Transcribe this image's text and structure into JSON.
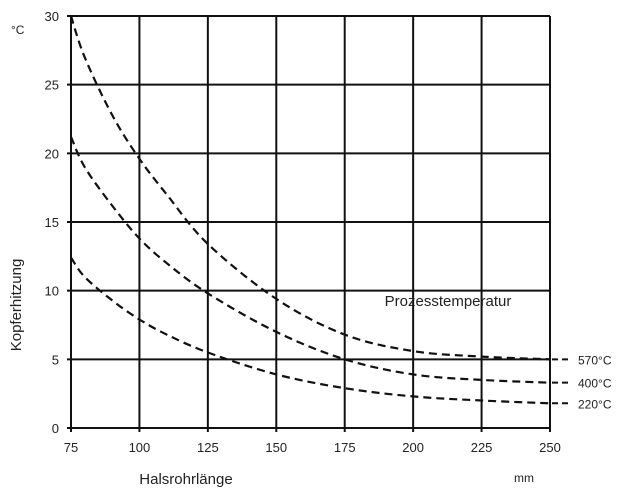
{
  "chart_data": {
    "type": "line",
    "xlabel": "Halsrohrlänge",
    "x_unit": "mm",
    "ylabel": "Kopferhitzung",
    "y_unit": "°C",
    "annotation": "Prozesstemperatur",
    "xlim": [
      75,
      250
    ],
    "ylim": [
      0,
      30
    ],
    "xticks": [
      75,
      100,
      125,
      150,
      175,
      200,
      225,
      250
    ],
    "yticks": [
      0,
      5,
      10,
      15,
      20,
      25,
      30
    ],
    "grid": true,
    "line_style": "dashed",
    "line_color": "#111111",
    "x": [
      75,
      80,
      90,
      100,
      110,
      125,
      150,
      175,
      200,
      225,
      250
    ],
    "series": [
      {
        "name": "570°C",
        "values": [
          30,
          27,
          22.8,
          19.6,
          17.0,
          13.4,
          9.4,
          6.8,
          5.6,
          5.2,
          5.0
        ]
      },
      {
        "name": "400°C",
        "values": [
          21.2,
          19.0,
          16.2,
          13.8,
          12.0,
          9.8,
          7.0,
          5.0,
          3.9,
          3.5,
          3.3
        ]
      },
      {
        "name": "220°C",
        "values": [
          12.4,
          11.0,
          9.3,
          7.9,
          6.8,
          5.5,
          3.9,
          2.9,
          2.3,
          2.0,
          1.8
        ]
      }
    ]
  }
}
